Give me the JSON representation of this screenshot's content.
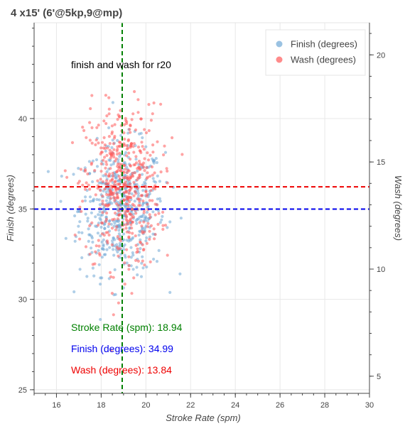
{
  "chart_data": {
    "type": "scatter",
    "title": "4 x15' (6'@5kp,9@mp)",
    "subtitle": "finish and wash for r20",
    "xlabel": "Stroke Rate (spm)",
    "ylabel": "Finish (degrees)",
    "y2label": "Wash (degrees)",
    "xlim": [
      15,
      30
    ],
    "ylim": [
      24.8,
      45.3
    ],
    "y2lim": [
      4.2,
      21.5
    ],
    "x_ticks": [
      "16",
      "18",
      "20",
      "22",
      "24",
      "26",
      "28",
      "30"
    ],
    "y_ticks": [
      "25",
      "30",
      "35",
      "40"
    ],
    "y2_ticks": [
      "5",
      "10",
      "15",
      "20"
    ],
    "grid": true,
    "legend_position": "top-right",
    "series": [
      {
        "name": "Finish (degrees)",
        "axis": "left",
        "color": "#6fa8d6",
        "cloud": {
          "x_mean": 18.94,
          "x_sd": 0.95,
          "y_mean": 34.99,
          "y_sd": 1.8,
          "count": 520
        }
      },
      {
        "name": "Wash (degrees)",
        "axis": "right",
        "color": "#ff5a5a",
        "cloud": {
          "x_mean": 18.94,
          "x_sd": 0.85,
          "y_mean": 13.84,
          "y_sd": 1.9,
          "count": 520
        }
      }
    ],
    "reference_lines": [
      {
        "orientation": "vertical",
        "axis": "x",
        "value": 18.94,
        "color": "#008000"
      },
      {
        "orientation": "horizontal",
        "axis": "left",
        "value": 34.99,
        "color": "#0000ee"
      },
      {
        "orientation": "horizontal",
        "axis": "right",
        "value": 13.84,
        "color": "#ee0000"
      }
    ],
    "annotations": [
      {
        "label": "Stroke Rate (spm): 18.94",
        "color": "#008000"
      },
      {
        "label": "Finish (degrees): 34.99",
        "color": "#0000ee"
      },
      {
        "label": "Wash (degrees): 13.84",
        "color": "#ee0000"
      }
    ]
  }
}
